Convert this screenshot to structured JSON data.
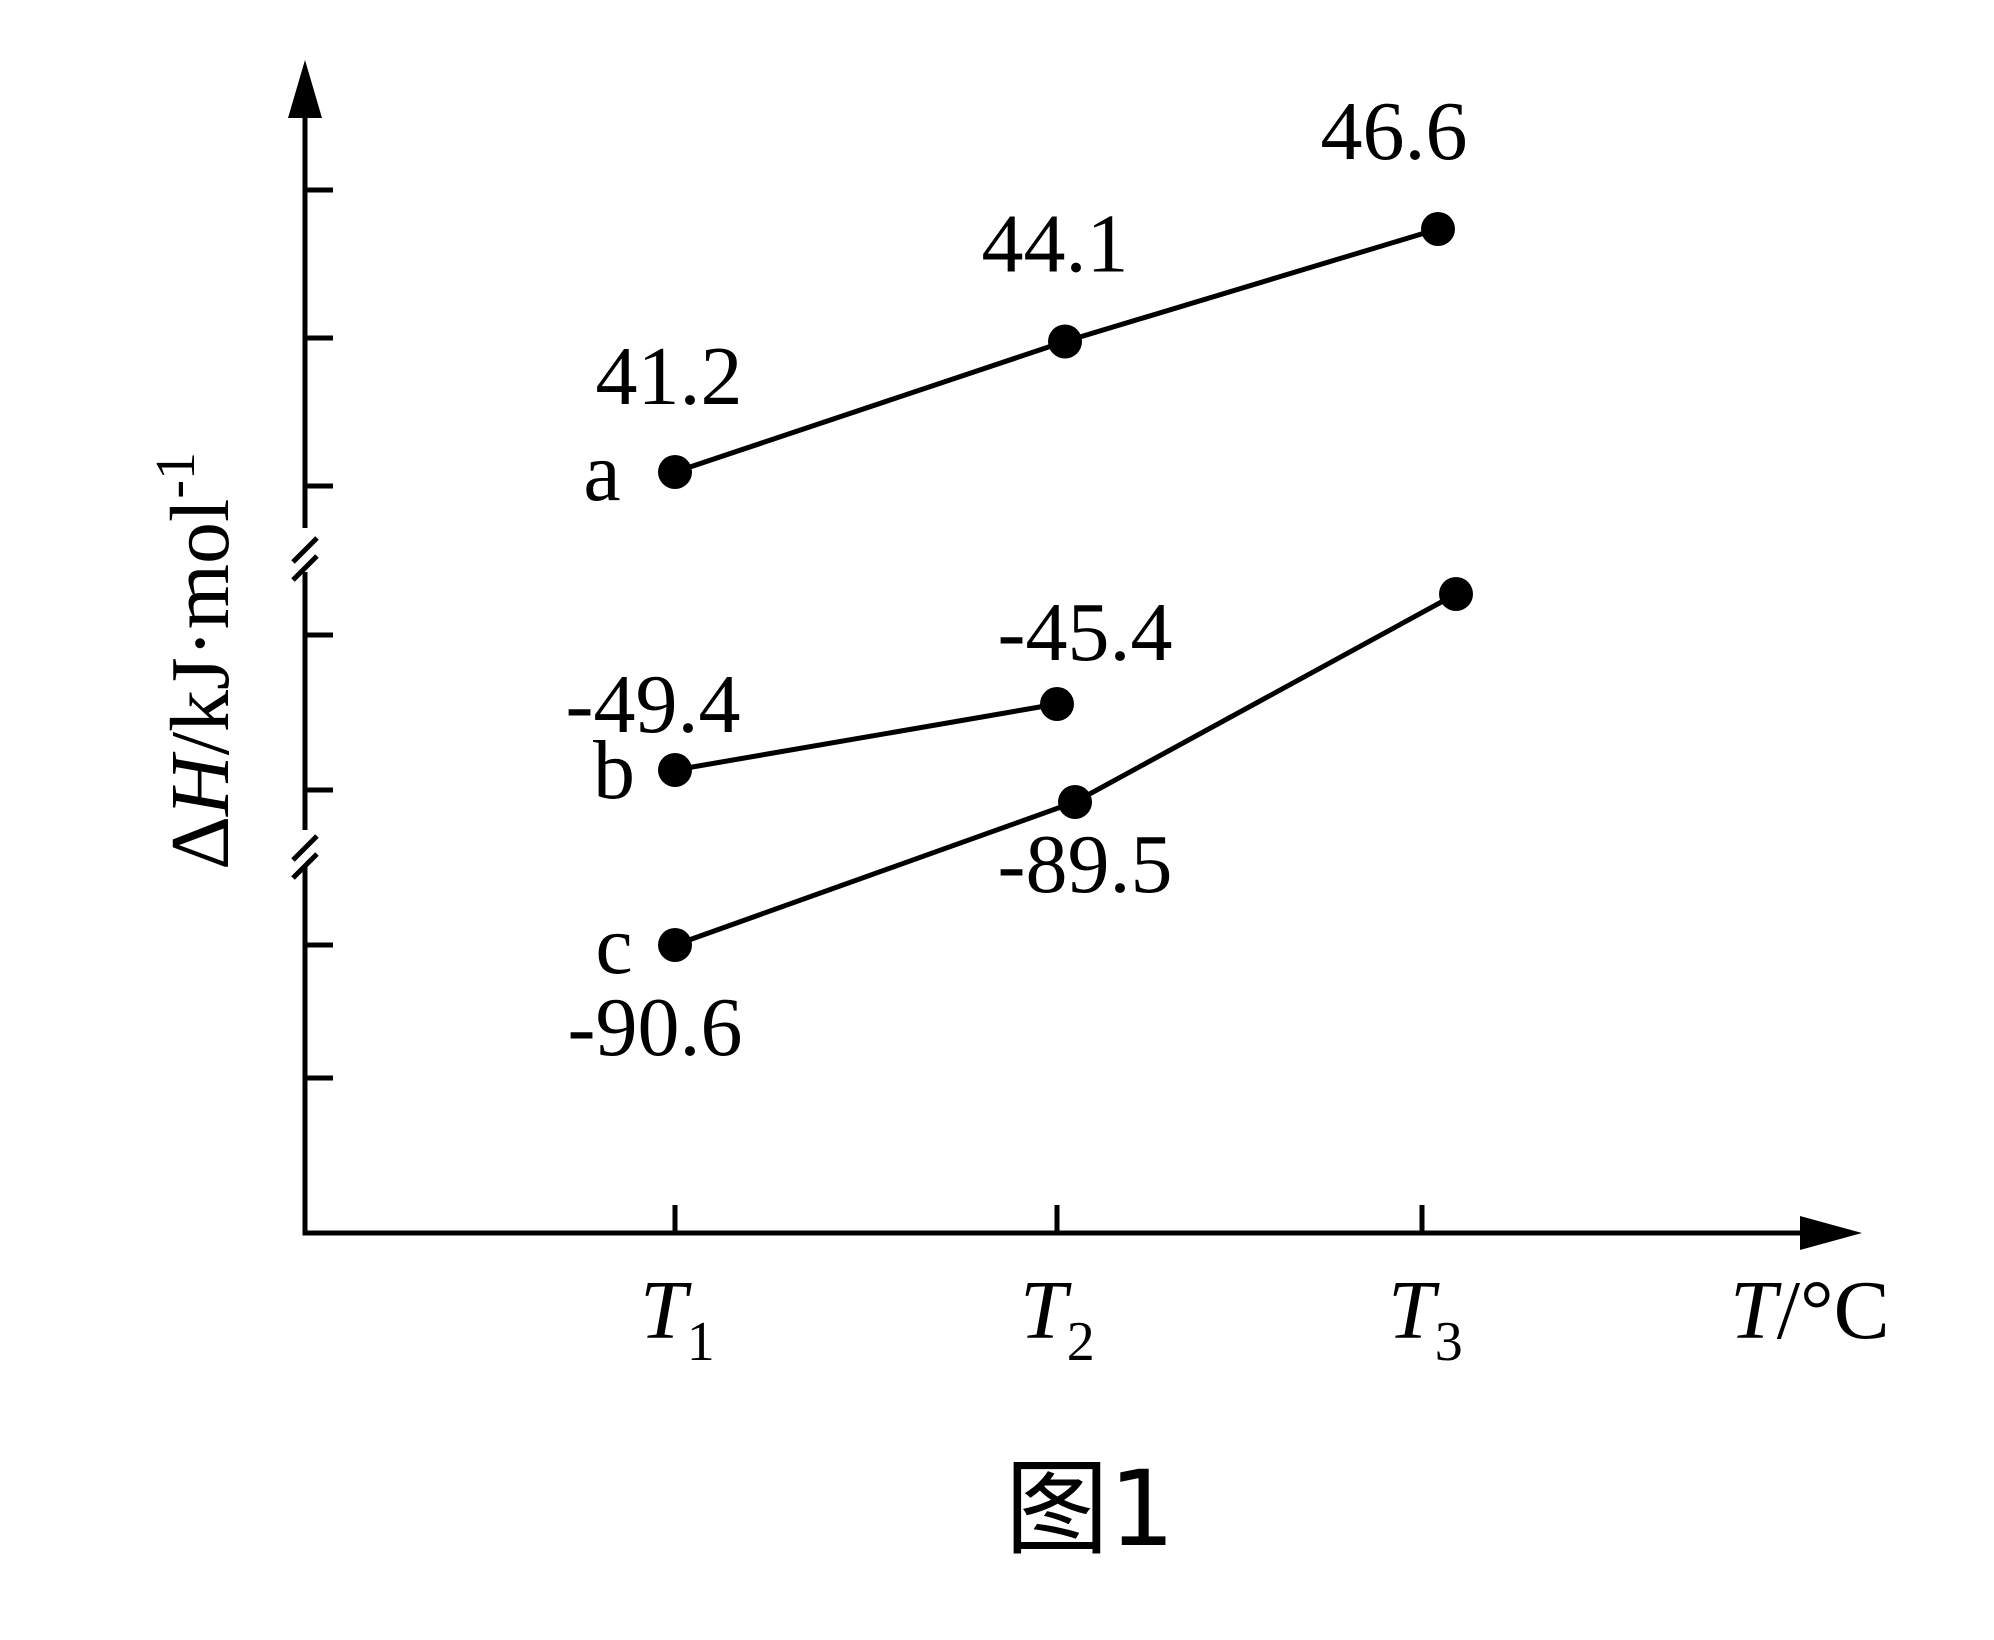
{
  "chart_data": {
    "type": "line",
    "caption": "图1",
    "xlabel": {
      "italic": "T",
      "rest": "/°C"
    },
    "ylabel": {
      "delta": "Δ",
      "italic": "H",
      "rest": "/kJ·mol",
      "sup": "-1"
    },
    "x_ticks": [
      {
        "main": "T",
        "sub": "1"
      },
      {
        "main": "T",
        "sub": "2"
      },
      {
        "main": "T",
        "sub": "3"
      }
    ],
    "y_axis_breaks": 2,
    "series": [
      {
        "name": "a",
        "points": [
          {
            "x": "T1",
            "y": 41.2,
            "label": "41.2"
          },
          {
            "x": "T2",
            "y": 44.1,
            "label": "44.1"
          },
          {
            "x": "T3",
            "y": 46.6,
            "label": "46.6"
          }
        ]
      },
      {
        "name": "b",
        "points": [
          {
            "x": "T1",
            "y": -49.4,
            "label": "-49.4"
          },
          {
            "x": "T2",
            "y": -45.4,
            "label": "-45.4"
          }
        ]
      },
      {
        "name": "c",
        "points": [
          {
            "x": "T1",
            "y": -90.6,
            "label": "-90.6"
          },
          {
            "x": "T2",
            "y": -89.5,
            "label": "-89.5"
          },
          {
            "x": "T3",
            "y": -87.9,
            "label": ""
          }
        ]
      }
    ]
  }
}
